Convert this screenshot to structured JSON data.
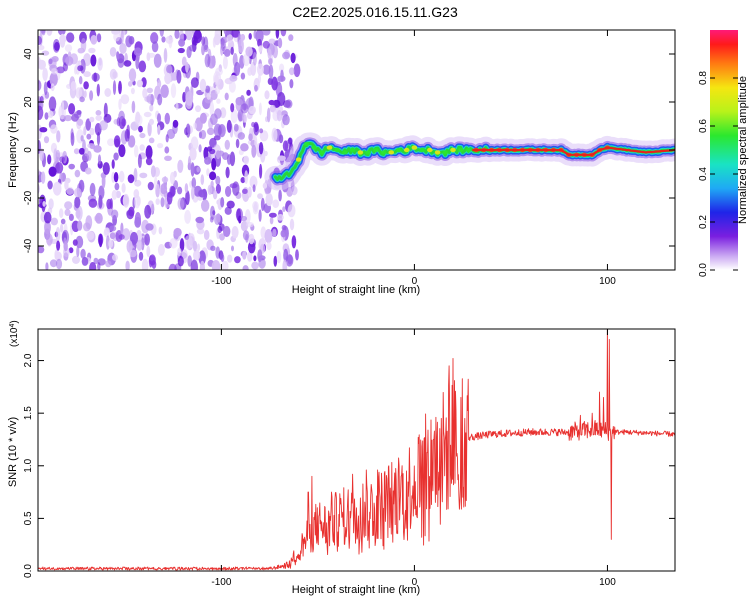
{
  "title": "C2E2.2025.016.15.11.G23",
  "chart_data": [
    {
      "type": "heatmap",
      "xlabel": "Height of straight line (km)",
      "ylabel": "Frequency (Hz)",
      "xlim": [
        -195,
        135
      ],
      "ylim": [
        -50,
        50
      ],
      "x_ticks": [
        -100,
        0,
        100
      ],
      "x_tick_labels": [
        "-100",
        "0",
        "100"
      ],
      "y_ticks": [
        -40,
        -20,
        0,
        20,
        40
      ],
      "y_tick_labels": [
        "-40",
        "-20",
        "0",
        "20",
        "40"
      ],
      "noise_region_x": [
        -195,
        -68
      ],
      "signal_trace": {
        "x": [
          -72,
          -68,
          -64,
          -60,
          -57,
          -55,
          -52,
          -48,
          -44,
          -40,
          -36,
          -32,
          -28,
          -24,
          -20,
          -16,
          -12,
          -8,
          -4,
          0,
          4,
          8,
          12,
          16,
          20,
          30,
          40,
          50,
          60,
          70,
          76,
          80,
          84,
          88,
          92,
          96,
          100,
          110,
          120,
          135
        ],
        "y": [
          -12,
          -11,
          -10,
          -4,
          2,
          3,
          1,
          -1,
          1,
          0,
          -1,
          0,
          -1,
          -1,
          0,
          -1,
          -1,
          0,
          0,
          1,
          0,
          0,
          -1,
          -1,
          0,
          0,
          0,
          0,
          0,
          0,
          0,
          -2,
          -2,
          -2,
          -2,
          0,
          1,
          0,
          -1,
          0
        ]
      },
      "colorbar": {
        "label": "Normalized spectral amplitude",
        "range": [
          0,
          1
        ],
        "ticks": [
          0.0,
          0.2,
          0.4,
          0.6,
          0.8
        ],
        "tick_labels": [
          "0.0",
          "0.2",
          "0.4",
          "0.6",
          "0.8"
        ]
      }
    },
    {
      "type": "line",
      "xlabel": "Height of straight line (km)",
      "ylabel": "SNR (10 * v/v)",
      "y_exponent_label": "(x10",
      "y_exponent_sup": "4",
      "y_exponent_close": ")",
      "xlim": [
        -195,
        135
      ],
      "ylim": [
        0,
        23000
      ],
      "x_ticks": [
        -100,
        0,
        100
      ],
      "x_tick_labels": [
        "-100",
        "0",
        "100"
      ],
      "y_ticks": [
        0,
        5000,
        10000,
        15000,
        20000
      ],
      "y_tick_labels": [
        "0.0",
        "0.5",
        "1.0",
        "1.5",
        "2.0"
      ],
      "color": "#e8312f",
      "envelope": {
        "x": [
          -195,
          -75,
          -65,
          -58,
          -50,
          -45,
          -40,
          -30,
          -20,
          -10,
          0,
          10,
          20,
          25,
          40,
          60,
          80,
          95,
          102,
          105,
          110,
          135
        ],
        "y": [
          200,
          200,
          600,
          2500,
          4500,
          4200,
          5000,
          5500,
          6200,
          7000,
          8500,
          10500,
          12000,
          12600,
          13000,
          13200,
          13200,
          13500,
          13200,
          13200,
          13200,
          13000
        ]
      },
      "spikes": {
        "x": [
          -55,
          -53,
          -43,
          -32,
          -25,
          -19,
          -8,
          2,
          6,
          10,
          14,
          18,
          20,
          24,
          26,
          86,
          92,
          96,
          98,
          100,
          101,
          102
        ],
        "y": [
          7500,
          9000,
          7500,
          9200,
          9600,
          9600,
          10000,
          12700,
          10000,
          12500,
          14500,
          19500,
          20200,
          16500,
          14500,
          14800,
          15000,
          17000,
          16500,
          23000,
          22000,
          3000
        ]
      }
    }
  ]
}
